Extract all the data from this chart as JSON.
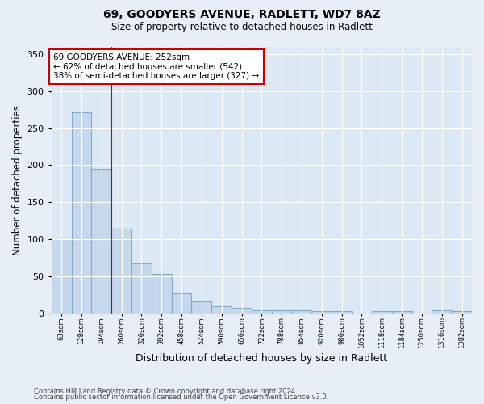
{
  "title_line1": "69, GOODYERS AVENUE, RADLETT, WD7 8AZ",
  "title_line2": "Size of property relative to detached houses in Radlett",
  "xlabel": "Distribution of detached houses by size in Radlett",
  "ylabel": "Number of detached properties",
  "bins": [
    "63sqm",
    "128sqm",
    "194sqm",
    "260sqm",
    "326sqm",
    "392sqm",
    "458sqm",
    "524sqm",
    "590sqm",
    "656sqm",
    "722sqm",
    "788sqm",
    "854sqm",
    "920sqm",
    "986sqm",
    "1052sqm",
    "1118sqm",
    "1184sqm",
    "1250sqm",
    "1316sqm",
    "1382sqm"
  ],
  "values": [
    100,
    271,
    195,
    115,
    68,
    54,
    27,
    17,
    10,
    8,
    5,
    5,
    5,
    3,
    3,
    0,
    3,
    3,
    0,
    4,
    3
  ],
  "bar_color": "#c5d8ec",
  "bar_edge_color": "#7faaca",
  "vline_x_index": 3,
  "vline_color": "#cc0000",
  "annotation_text": "69 GOODYERS AVENUE: 252sqm\n← 62% of detached houses are smaller (542)\n38% of semi-detached houses are larger (327) →",
  "annotation_box_color": "#ffffff",
  "annotation_border_color": "#cc0000",
  "ylim": [
    0,
    360
  ],
  "yticks": [
    0,
    50,
    100,
    150,
    200,
    250,
    300,
    350
  ],
  "footer_line1": "Contains HM Land Registry data © Crown copyright and database right 2024.",
  "footer_line2": "Contains public sector information licensed under the Open Government Licence v3.0.",
  "background_color": "#e8eef5",
  "plot_bg_color": "#dce8f4"
}
